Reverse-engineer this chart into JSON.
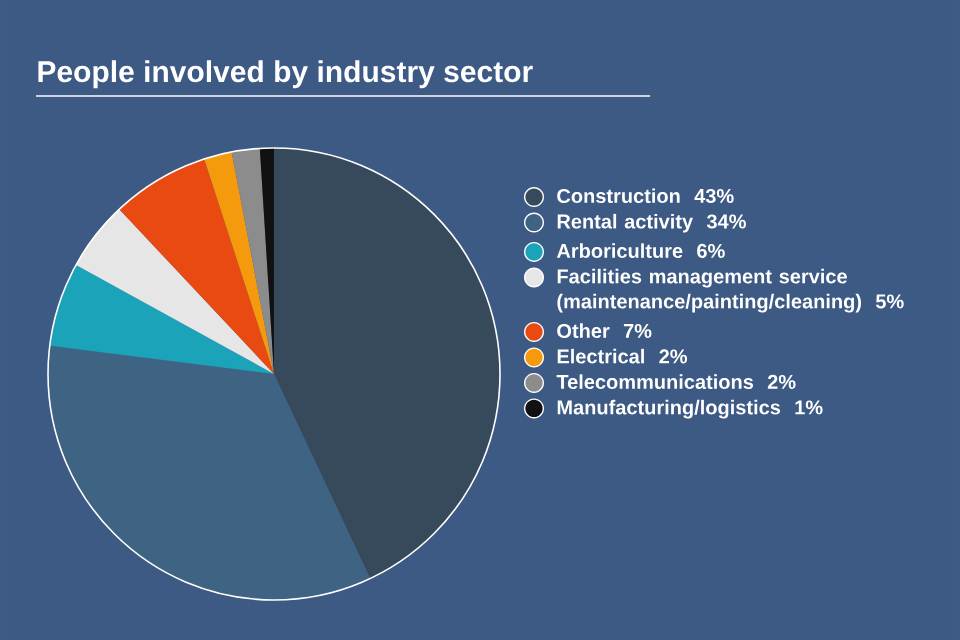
{
  "chart_data": {
    "type": "pie",
    "title": "People involved by industry sector",
    "categories": [
      "Construction",
      "Rental activity",
      "Arboriculture",
      "Facilities management service (maintenance/painting/cleaning)",
      "Other",
      "Electrical",
      "Telecommunications",
      "Manufacturing/logistics"
    ],
    "values": [
      43,
      34,
      6,
      5,
      7,
      2,
      2,
      1
    ],
    "value_labels": [
      "43%",
      "34%",
      "6%",
      "5%",
      "7%",
      "2%",
      "2%",
      "1%"
    ],
    "colors": [
      "#364a5c",
      "#3f6383",
      "#1ba3ba",
      "#e6e6e6",
      "#e84a12",
      "#f59a0c",
      "#8c8c8c",
      "#111111"
    ],
    "legend": "right"
  }
}
